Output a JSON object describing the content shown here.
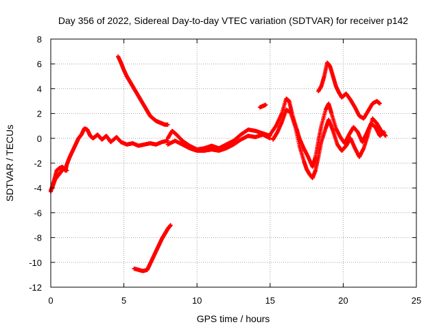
{
  "chart_data": {
    "type": "scatter",
    "title": "Day 356 of 2022, Sidereal Day-to-day VTEC variation (SDTVAR) for receiver p142",
    "xlabel": "GPS time / hours",
    "ylabel": "SDTVAR / TECUs",
    "xlim": [
      0,
      25
    ],
    "ylim": [
      -12,
      8
    ],
    "xticks": [
      0,
      5,
      10,
      15,
      20,
      25
    ],
    "yticks": [
      -12,
      -10,
      -8,
      -6,
      -4,
      -2,
      0,
      2,
      4,
      6,
      8
    ],
    "grid": true,
    "marker": "+",
    "series_color": "#ff0000",
    "series": [
      {
        "name": "trace-main-start",
        "points": [
          [
            0,
            -4.3
          ],
          [
            0.2,
            -3.5
          ],
          [
            0.4,
            -2.6
          ],
          [
            0.6,
            -2.4
          ],
          [
            0.8,
            -2.3
          ],
          [
            1.0,
            -2.6
          ],
          [
            1.1,
            -2.1
          ],
          [
            1.3,
            -1.5
          ],
          [
            1.5,
            -1.0
          ],
          [
            1.7,
            -0.5
          ],
          [
            1.9,
            0.0
          ],
          [
            2.1,
            0.3
          ],
          [
            2.3,
            0.8
          ],
          [
            2.5,
            0.7
          ],
          [
            2.7,
            0.2
          ],
          [
            2.9,
            0.0
          ],
          [
            3.2,
            0.3
          ],
          [
            3.5,
            -0.1
          ],
          [
            3.8,
            0.2
          ],
          [
            4.1,
            -0.3
          ],
          [
            4.5,
            0.1
          ],
          [
            4.8,
            -0.3
          ],
          [
            5.2,
            -0.5
          ],
          [
            5.6,
            -0.4
          ],
          [
            6.0,
            -0.6
          ],
          [
            6.4,
            -0.5
          ],
          [
            6.8,
            -0.4
          ],
          [
            7.2,
            -0.5
          ],
          [
            7.6,
            -0.3
          ],
          [
            8.0,
            -0.2
          ]
        ]
      },
      {
        "name": "trace-rising-left",
        "points": [
          [
            0.0,
            -4.2
          ],
          [
            0.15,
            -3.8
          ],
          [
            0.3,
            -3.3
          ],
          [
            0.5,
            -3.0
          ],
          [
            0.7,
            -2.7
          ],
          [
            0.9,
            -2.4
          ],
          [
            1.1,
            -2.6
          ]
        ]
      },
      {
        "name": "trace-mid-flat",
        "points": [
          [
            8.0,
            0.0
          ],
          [
            8.3,
            0.6
          ],
          [
            8.6,
            0.3
          ],
          [
            9.0,
            -0.2
          ],
          [
            9.5,
            -0.6
          ],
          [
            10.0,
            -0.9
          ],
          [
            10.5,
            -0.8
          ],
          [
            11.0,
            -0.6
          ],
          [
            11.5,
            -0.8
          ],
          [
            12.0,
            -0.5
          ],
          [
            12.5,
            -0.2
          ],
          [
            13.0,
            0.3
          ],
          [
            13.5,
            0.7
          ],
          [
            14.0,
            0.6
          ],
          [
            14.5,
            0.4
          ],
          [
            15.0,
            0.2
          ]
        ]
      },
      {
        "name": "trace-mid-flat-lower",
        "points": [
          [
            8.0,
            -0.5
          ],
          [
            8.5,
            -0.2
          ],
          [
            9.0,
            -0.5
          ],
          [
            9.5,
            -0.8
          ],
          [
            10.0,
            -1.0
          ],
          [
            10.5,
            -1.0
          ],
          [
            11.0,
            -0.9
          ],
          [
            11.5,
            -1.0
          ],
          [
            12.0,
            -0.8
          ],
          [
            12.5,
            -0.5
          ],
          [
            13.0,
            -0.1
          ],
          [
            13.5,
            0.2
          ],
          [
            14.0,
            0.1
          ],
          [
            14.5,
            0.3
          ],
          [
            15.0,
            0.0
          ]
        ]
      },
      {
        "name": "trace-descending",
        "points": [
          [
            4.6,
            6.6
          ],
          [
            4.8,
            6.1
          ],
          [
            5.0,
            5.5
          ],
          [
            5.2,
            5.0
          ],
          [
            5.4,
            4.6
          ],
          [
            5.6,
            4.2
          ],
          [
            5.8,
            3.8
          ],
          [
            6.0,
            3.4
          ],
          [
            6.2,
            3.0
          ],
          [
            6.4,
            2.6
          ],
          [
            6.6,
            2.2
          ],
          [
            6.8,
            1.8
          ],
          [
            7.0,
            1.6
          ],
          [
            7.2,
            1.4
          ],
          [
            7.4,
            1.3
          ],
          [
            7.6,
            1.2
          ],
          [
            7.8,
            1.1
          ],
          [
            8.0,
            1.1
          ]
        ]
      },
      {
        "name": "trace-lower-segment",
        "points": [
          [
            5.7,
            -10.5
          ],
          [
            6.0,
            -10.6
          ],
          [
            6.3,
            -10.7
          ],
          [
            6.6,
            -10.6
          ],
          [
            6.8,
            -10.1
          ],
          [
            7.0,
            -9.6
          ],
          [
            7.2,
            -9.1
          ],
          [
            7.4,
            -8.6
          ],
          [
            7.6,
            -8.1
          ],
          [
            7.8,
            -7.7
          ],
          [
            8.0,
            -7.3
          ],
          [
            8.2,
            -7.0
          ]
        ]
      },
      {
        "name": "trace-isolated-dash",
        "points": [
          [
            14.3,
            2.5
          ],
          [
            14.5,
            2.6
          ],
          [
            14.7,
            2.7
          ]
        ]
      },
      {
        "name": "trace-late-a",
        "points": [
          [
            15.0,
            0.3
          ],
          [
            15.4,
            1.0
          ],
          [
            15.8,
            2.0
          ],
          [
            16.1,
            3.2
          ],
          [
            16.3,
            3.0
          ],
          [
            16.5,
            2.0
          ],
          [
            16.8,
            0.8
          ],
          [
            17.0,
            0.0
          ],
          [
            17.3,
            -0.8
          ],
          [
            17.6,
            -1.5
          ],
          [
            17.9,
            -2.3
          ],
          [
            18.1,
            -1.5
          ],
          [
            18.3,
            -0.2
          ],
          [
            18.5,
            1.0
          ],
          [
            18.8,
            2.3
          ],
          [
            19.0,
            2.8
          ],
          [
            19.2,
            2.0
          ],
          [
            19.5,
            0.8
          ],
          [
            19.8,
            0.1
          ],
          [
            20.1,
            -0.4
          ],
          [
            20.4,
            0.3
          ],
          [
            20.7,
            0.9
          ],
          [
            21.0,
            0.5
          ],
          [
            21.3,
            -0.3
          ],
          [
            21.6,
            0.4
          ],
          [
            21.9,
            1.2
          ],
          [
            22.2,
            0.9
          ],
          [
            22.5,
            0.2
          ],
          [
            22.8,
            0.5
          ]
        ]
      },
      {
        "name": "trace-late-b",
        "points": [
          [
            15.2,
            -0.1
          ],
          [
            15.5,
            0.5
          ],
          [
            15.8,
            1.3
          ],
          [
            16.1,
            2.3
          ],
          [
            16.4,
            2.1
          ],
          [
            16.7,
            1.0
          ],
          [
            17.0,
            -0.6
          ],
          [
            17.3,
            -1.8
          ],
          [
            17.5,
            -2.5
          ],
          [
            17.7,
            -2.9
          ],
          [
            17.9,
            -3.2
          ],
          [
            18.1,
            -2.6
          ],
          [
            18.3,
            -1.5
          ],
          [
            18.5,
            -0.3
          ],
          [
            18.8,
            0.8
          ],
          [
            19.0,
            1.5
          ],
          [
            19.3,
            0.6
          ],
          [
            19.6,
            -0.5
          ],
          [
            19.9,
            -1.0
          ],
          [
            20.2,
            -0.6
          ],
          [
            20.5,
            0.0
          ],
          [
            20.8,
            -0.8
          ],
          [
            21.1,
            -1.5
          ],
          [
            21.4,
            -0.8
          ],
          [
            21.7,
            0.3
          ],
          [
            22.0,
            1.6
          ],
          [
            22.3,
            1.2
          ],
          [
            22.6,
            0.6
          ],
          [
            22.9,
            0.2
          ]
        ]
      },
      {
        "name": "trace-late-high",
        "points": [
          [
            18.3,
            3.8
          ],
          [
            18.5,
            4.2
          ],
          [
            18.7,
            5.0
          ],
          [
            18.9,
            6.1
          ],
          [
            19.1,
            5.8
          ],
          [
            19.3,
            5.0
          ],
          [
            19.5,
            4.2
          ],
          [
            19.7,
            3.7
          ],
          [
            19.9,
            3.3
          ],
          [
            20.2,
            3.6
          ],
          [
            20.5,
            3.1
          ],
          [
            20.8,
            2.5
          ],
          [
            21.1,
            1.8
          ],
          [
            21.4,
            1.6
          ],
          [
            21.7,
            2.2
          ],
          [
            22.0,
            2.8
          ],
          [
            22.3,
            3.0
          ],
          [
            22.5,
            2.8
          ]
        ]
      }
    ]
  }
}
